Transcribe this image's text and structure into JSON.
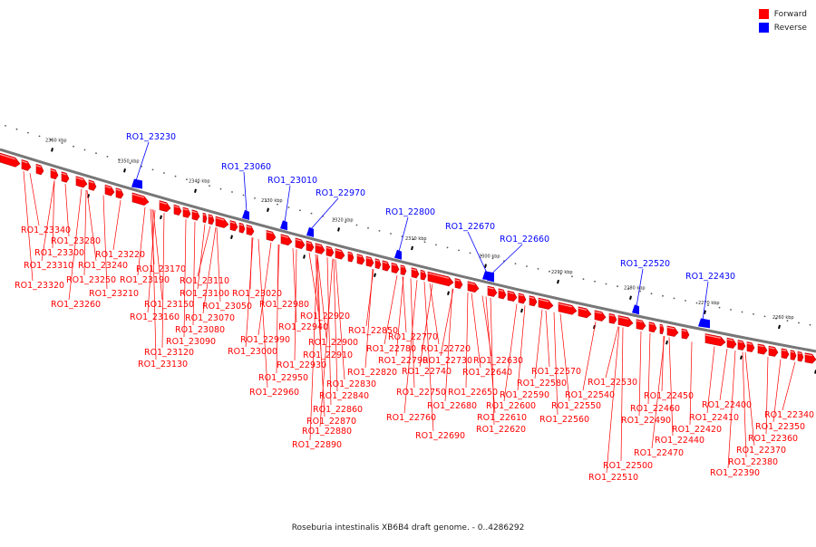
{
  "legend": {
    "forward_label": "Forward",
    "reverse_label": "Reverse",
    "forward_color": "#ff0000",
    "reverse_color": "#0000ff"
  },
  "caption": "Roseburia intestinalis XB6B4 draft genome. - 0..4286292",
  "scale_labels": [
    "2360 kbp",
    "2350 kbp",
    "2340 kbp",
    "2330 kbp",
    "2320 kbp",
    "2310 kbp",
    "2300 kbp",
    "2290 kbp",
    "2280 kbp",
    "2270 kbp",
    "2260 kbp"
  ],
  "reverse_genes": [
    "RO1_23230",
    "RO1_23060",
    "RO1_23010",
    "RO1_22970",
    "RO1_22800",
    "RO1_22670",
    "RO1_22660",
    "RO1_22520",
    "RO1_22430"
  ],
  "forward_genes": [
    "RO1_23340",
    "RO1_23280",
    "RO1_23300",
    "RO1_23220",
    "RO1_23310",
    "RO1_23240",
    "RO1_23170",
    "RO1_23250",
    "RO1_23190",
    "RO1_23110",
    "RO1_23320",
    "RO1_23210",
    "RO1_23020",
    "RO1_23100",
    "RO1_23260",
    "RO1_23150",
    "RO1_23050",
    "RO1_22980",
    "RO1_23160",
    "RO1_23070",
    "RO1_22920",
    "RO1_22940",
    "RO1_23080",
    "RO1_22850",
    "RO1_22990",
    "RO1_22900",
    "RO1_22770",
    "RO1_23090",
    "RO1_23000",
    "RO1_22780",
    "RO1_22720",
    "RO1_22910",
    "RO1_23120",
    "RO1_22790",
    "RO1_22730",
    "RO1_22630",
    "RO1_23130",
    "RO1_22930",
    "RO1_22820",
    "RO1_22740",
    "RO1_22640",
    "RO1_22570",
    "RO1_22950",
    "RO1_22580",
    "RO1_22530",
    "RO1_22830",
    "RO1_22750",
    "RO1_22650",
    "RO1_22590",
    "RO1_22540",
    "RO1_22960",
    "RO1_22840",
    "RO1_22450",
    "RO1_22680",
    "RO1_22600",
    "RO1_22550",
    "RO1_22860",
    "RO1_22460",
    "RO1_22400",
    "RO1_22760",
    "RO1_22610",
    "RO1_22560",
    "RO1_22490",
    "RO1_22410",
    "RO1_22340",
    "RO1_22870",
    "RO1_22620",
    "RO1_22420",
    "RO1_22350",
    "RO1_22880",
    "RO1_22690",
    "RO1_22440",
    "RO1_22360",
    "RO1_22890",
    "RO1_22470",
    "RO1_22370",
    "RO1_22380",
    "RO1_22500",
    "RO1_22390",
    "RO1_22510"
  ]
}
